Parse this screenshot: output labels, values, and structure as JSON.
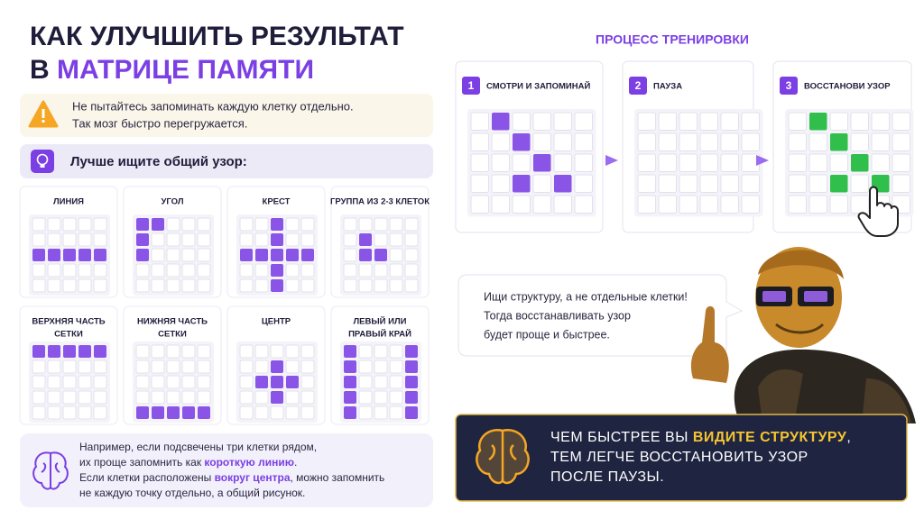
{
  "title": {
    "line1": "КАК УЛУЧШИТЬ РЕЗУЛЬТАТ",
    "line2_prefix": "В",
    "line2_highlight": "МАТРИЦЕ ПАМЯТИ"
  },
  "warning": {
    "lines": [
      "Не пытайтесь запоминать каждую клетку отдельно.",
      "Так мозг быстро перегружается."
    ]
  },
  "tip": "Лучше ищите общий узор:",
  "patterns": [
    {
      "lines": [
        "ЛИНИЯ"
      ]
    },
    {
      "lines": [
        "УГОЛ"
      ]
    },
    {
      "lines": [
        "КРЕСТ"
      ]
    },
    {
      "lines": [
        "ГРУППА ИЗ 2-3 КЛЕТОК"
      ]
    },
    {
      "lines": [
        "ВЕРХНЯЯ ЧАСТЬ",
        "СЕТКИ"
      ]
    },
    {
      "lines": [
        "НИЖНЯЯ ЧАСТЬ",
        "СЕТКИ"
      ]
    },
    {
      "lines": [
        "ЦЕНТР"
      ]
    },
    {
      "lines": [
        "ЛЕВЫЙ ИЛИ",
        "ПРАВЫЙ КРАЙ"
      ]
    }
  ],
  "example": {
    "line1": "Например, если подсвечены три клетки рядом,",
    "line2": [
      "их проще запомнить как ",
      "короткую линию",
      "."
    ],
    "line3": [
      "Если клетки расположены ",
      "вокруг центра",
      ", можно запомнить"
    ],
    "line4": "не каждую точку отдельно, а общий рисунок."
  },
  "process": {
    "title": "ПРОЦЕСС ТРЕНИРОВКИ",
    "steps": [
      {
        "number": 1,
        "label": "СМОТРИ И ЗАПОМИНАЙ"
      },
      {
        "number": 2,
        "label": "ПАУЗА"
      },
      {
        "number": 3,
        "label": "ВОССТАНОВИ УЗОР"
      }
    ]
  },
  "speech": {
    "lines": [
      "Ищи структуру, а не отдельные клетки!",
      "Тогда восстанавливать узор",
      "будет проще и быстрее."
    ]
  },
  "callout": {
    "line1": [
      "ЧЕМ БЫСТРЕЕ ВЫ ",
      "ВИДИТЕ СТРУКТУРУ",
      ","
    ],
    "line2": "ТЕМ ЛЕГЧЕ ВОССТАНОВИТЬ УЗОР",
    "line3": "ПОСЛЕ ПАУЗЫ."
  }
}
